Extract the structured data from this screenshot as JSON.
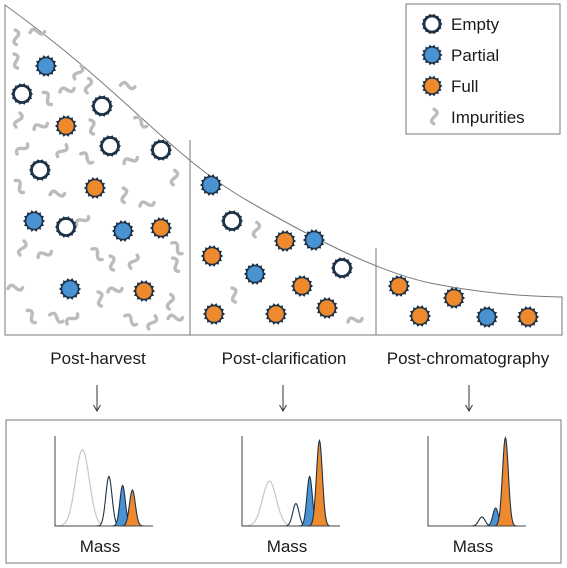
{
  "colors": {
    "empty_fill": "#ffffff",
    "partial_fill": "#4a93d3",
    "full_fill": "#ee8a2d",
    "particle_outline": "#1e3247",
    "impurity": "#bcbcbc",
    "frame": "#7a7a7a",
    "text": "#1b1b1b"
  },
  "legend": {
    "items": [
      {
        "label": "Empty",
        "kind": "empty"
      },
      {
        "label": "Partial",
        "kind": "partial"
      },
      {
        "label": "Full",
        "kind": "full"
      },
      {
        "label": "Impurities",
        "kind": "impurity"
      }
    ]
  },
  "stages": [
    {
      "label": "Post-harvest"
    },
    {
      "label": "Post-clarification"
    },
    {
      "label": "Post-chromatography"
    }
  ],
  "histograms": [
    {
      "xlabel": "Mass",
      "peaks": {
        "impurity": 0.85,
        "empty": 0.55,
        "partial": 0.45,
        "full": 0.4
      }
    },
    {
      "xlabel": "Mass",
      "peaks": {
        "impurity": 0.5,
        "empty": 0.25,
        "partial": 0.55,
        "full": 0.95
      }
    },
    {
      "xlabel": "Mass",
      "peaks": {
        "impurity": 0.0,
        "empty": 0.1,
        "partial": 0.2,
        "full": 0.98
      }
    }
  ]
}
